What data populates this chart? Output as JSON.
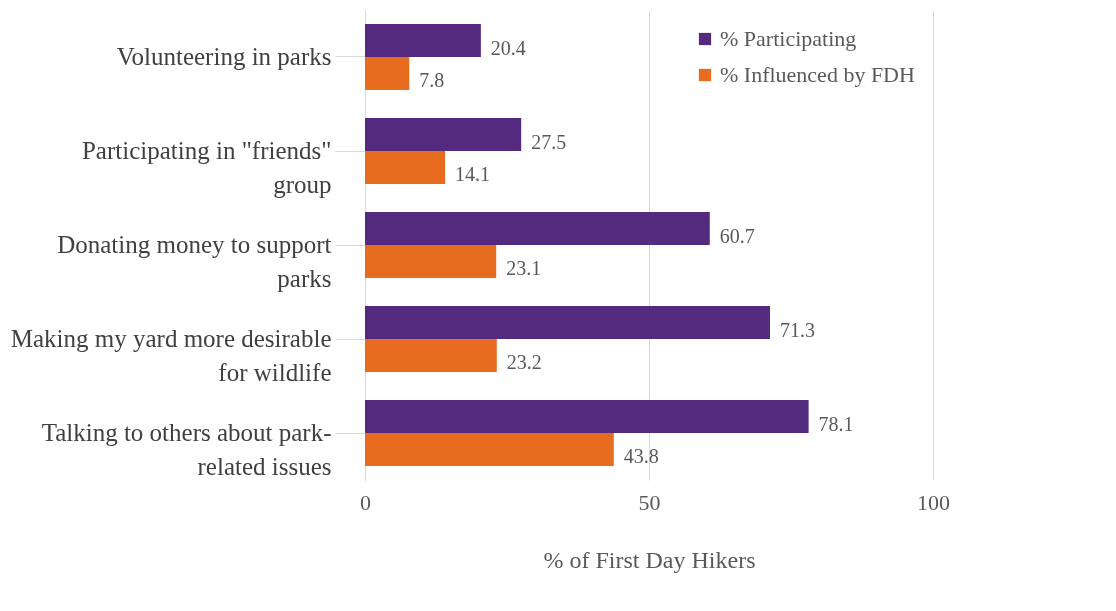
{
  "chart_data": {
    "type": "bar",
    "orientation": "horizontal",
    "categories": [
      "Volunteering in parks",
      "Participating in \"friends\" group",
      "Donating money to support parks",
      "Making my yard more desirable for wildlife",
      "Talking to others about park-related issues"
    ],
    "series": [
      {
        "name": "% Participating",
        "color": "#542a7e",
        "values": [
          20.4,
          27.5,
          60.7,
          71.3,
          78.1
        ]
      },
      {
        "name": "% Influenced by FDH",
        "color": "#e86c1f",
        "values": [
          7.8,
          14.1,
          23.1,
          23.2,
          43.8
        ]
      }
    ],
    "xlabel": "% of First Day Hikers",
    "xlim": [
      0,
      100
    ],
    "xticks": [
      0,
      50,
      100
    ],
    "grid": "x",
    "legend": "top right",
    "data_labels": true
  }
}
